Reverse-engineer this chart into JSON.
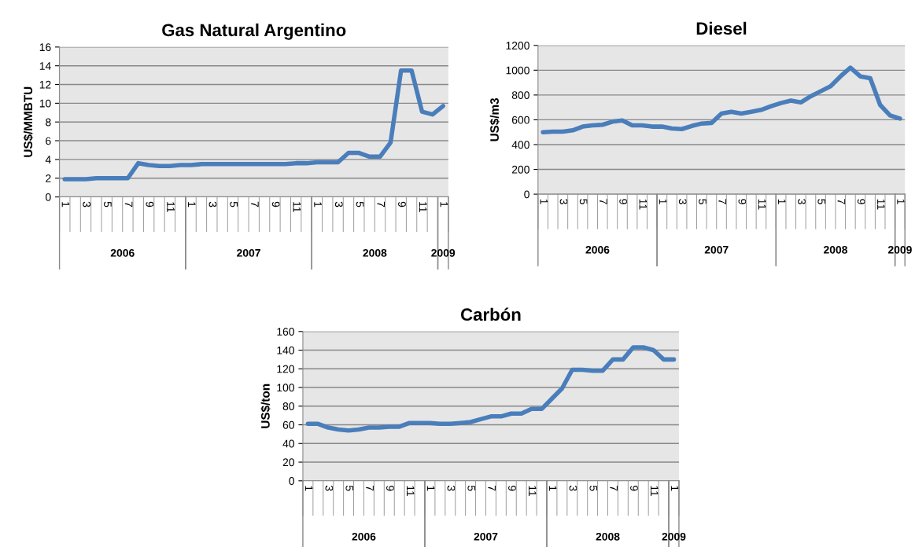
{
  "chart_data": [
    {
      "type": "line",
      "title": "Gas Natural Argentino",
      "ylabel": "US$/MMBTU",
      "categories": [
        "1",
        null,
        "3",
        null,
        "5",
        null,
        "7",
        null,
        "9",
        null,
        "11",
        null,
        "1",
        null,
        "3",
        null,
        "5",
        null,
        "7",
        null,
        "9",
        null,
        "11",
        null,
        "1",
        null,
        "3",
        null,
        "5",
        null,
        "7",
        null,
        "9",
        null,
        "11",
        null,
        "1"
      ],
      "series": [
        {
          "color": "#4a7ebb",
          "values": [
            1.9,
            1.9,
            1.9,
            2.0,
            2.0,
            2.0,
            2.0,
            3.6,
            3.4,
            3.3,
            3.3,
            3.4,
            3.4,
            3.5,
            3.5,
            3.5,
            3.5,
            3.5,
            3.5,
            3.5,
            3.5,
            3.5,
            3.6,
            3.6,
            3.7,
            3.7,
            3.7,
            4.7,
            4.7,
            4.3,
            4.3,
            5.8,
            13.5,
            13.5,
            9.1,
            8.8,
            9.7
          ]
        }
      ],
      "ylim": [
        0,
        16
      ],
      "yticks": [
        0,
        2,
        4,
        6,
        8,
        10,
        12,
        14,
        16
      ],
      "grid": "y",
      "annotations": [
        "2006",
        "2007",
        "2008",
        "2009"
      ]
    },
    {
      "type": "line",
      "title": "Diesel",
      "ylabel": "US$/m3",
      "categories": [
        "1",
        null,
        "3",
        null,
        "5",
        null,
        "7",
        null,
        "9",
        null,
        "11",
        null,
        "1",
        null,
        "3",
        null,
        "5",
        null,
        "7",
        null,
        "9",
        null,
        "11",
        null,
        "1",
        null,
        "3",
        null,
        "5",
        null,
        "7",
        null,
        "9",
        null,
        "11",
        null,
        "1"
      ],
      "series": [
        {
          "color": "#4a7ebb",
          "values": [
            500,
            505,
            505,
            515,
            545,
            555,
            560,
            585,
            595,
            555,
            555,
            545,
            545,
            530,
            525,
            550,
            570,
            575,
            650,
            665,
            650,
            665,
            680,
            710,
            735,
            755,
            740,
            790,
            830,
            870,
            950,
            1020,
            950,
            935,
            720,
            635,
            610
          ]
        }
      ],
      "ylim": [
        0,
        1200
      ],
      "yticks": [
        0,
        200,
        400,
        600,
        800,
        1000,
        1200
      ],
      "grid": "y",
      "annotations": [
        "2006",
        "2007",
        "2008",
        "2009"
      ]
    },
    {
      "type": "line",
      "title": "Carbón",
      "ylabel": "US$/ton",
      "categories": [
        "1",
        null,
        "3",
        null,
        "5",
        null,
        "7",
        null,
        "9",
        null,
        "11",
        null,
        "1",
        null,
        "3",
        null,
        "5",
        null,
        "7",
        null,
        "9",
        null,
        "11",
        null,
        "1",
        null,
        "3",
        null,
        "5",
        null,
        "7",
        null,
        "9",
        null,
        "11",
        null,
        "1"
      ],
      "series": [
        {
          "color": "#4a7ebb",
          "values": [
            61,
            61,
            57,
            55,
            54,
            55,
            57,
            57,
            58,
            58,
            62,
            62,
            62,
            61,
            61,
            62,
            63,
            66,
            69,
            69,
            72,
            72,
            77,
            77,
            88,
            99,
            119,
            119,
            118,
            118,
            130,
            130,
            143,
            143,
            140,
            130,
            130
          ]
        }
      ],
      "ylim": [
        0,
        160
      ],
      "yticks": [
        0,
        20,
        40,
        60,
        80,
        100,
        120,
        140,
        160
      ],
      "grid": "y",
      "annotations": [
        "2006",
        "2007",
        "2008",
        "2009"
      ]
    }
  ]
}
